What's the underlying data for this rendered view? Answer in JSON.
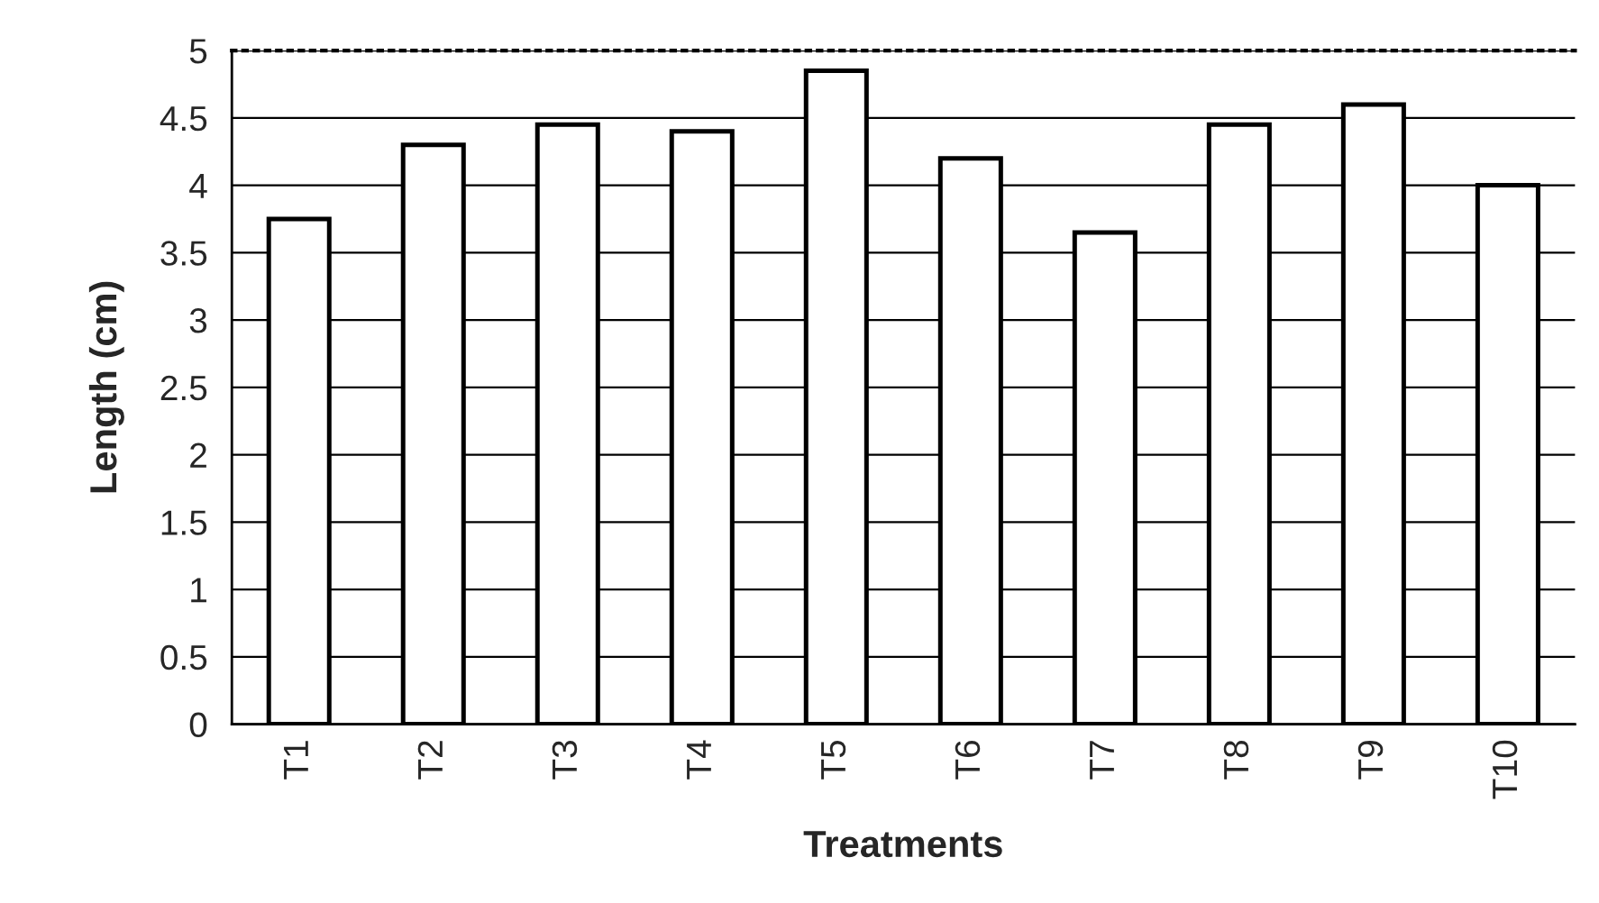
{
  "chart_data": {
    "type": "bar",
    "xlabel": "Treatments",
    "ylabel": "Length (cm)",
    "categories": [
      "T1",
      "T2",
      "T3",
      "T4",
      "T5",
      "T6",
      "T7",
      "T8",
      "T9",
      "T10"
    ],
    "values": [
      3.75,
      4.3,
      4.45,
      4.4,
      4.85,
      4.2,
      3.65,
      4.45,
      4.6,
      4
    ],
    "color": "#ffffff",
    "ylim": [
      0,
      5
    ],
    "yticks": [
      0,
      0.5,
      1,
      1.5,
      2,
      2.5,
      3,
      3.5,
      4,
      4.5,
      5
    ],
    "grid": "y"
  }
}
